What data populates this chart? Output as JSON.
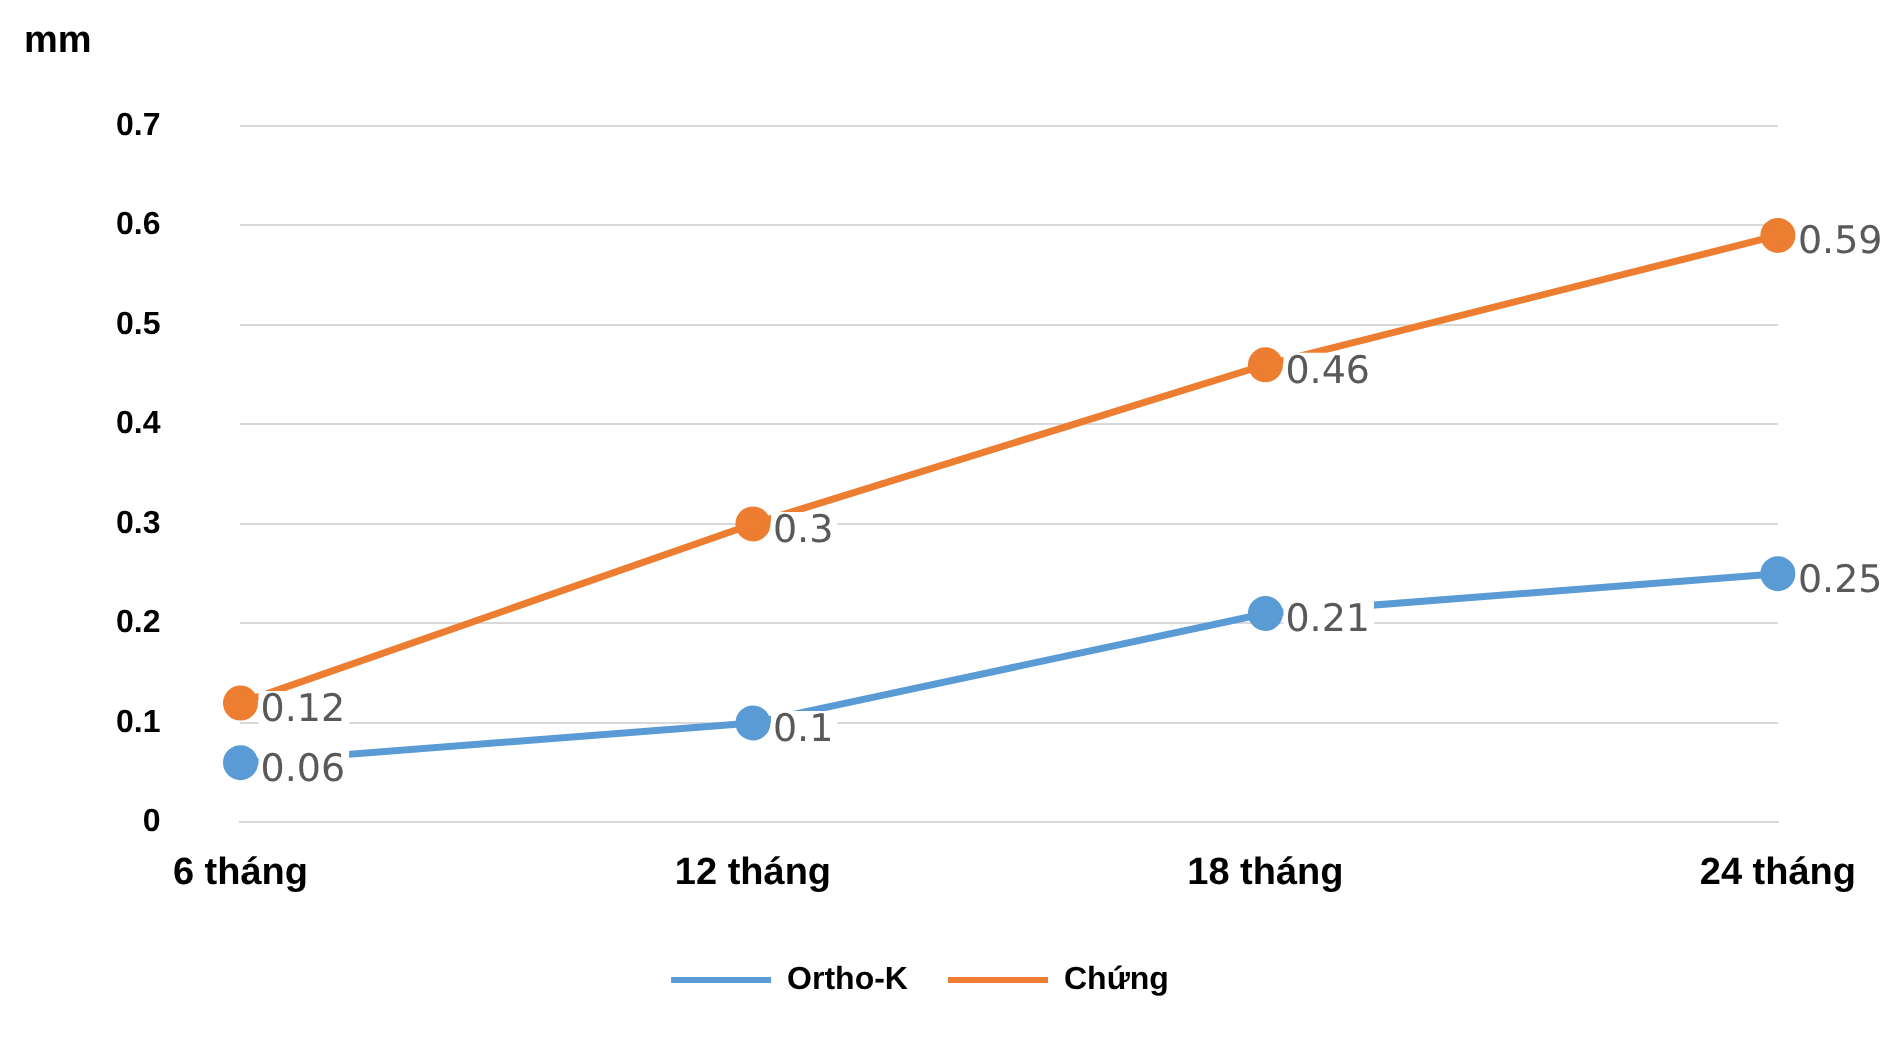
{
  "chart_data": {
    "type": "line",
    "ylabel": "mm",
    "categories": [
      "6 tháng",
      "12 tháng",
      "18 tháng",
      "24 tháng"
    ],
    "series": [
      {
        "name": "Ortho-K",
        "color": "#5b9bd5",
        "values": [
          0.06,
          0.1,
          0.21,
          0.25
        ]
      },
      {
        "name": "Chứng",
        "color": "#ed7d31",
        "values": [
          0.12,
          0.3,
          0.46,
          0.59
        ]
      }
    ],
    "ylim": [
      0,
      0.7
    ],
    "yticks": [
      0,
      0.1,
      0.2,
      0.3,
      0.4,
      0.5,
      0.6,
      0.7
    ],
    "grid": "y",
    "legend": "bottom",
    "marker": "circle",
    "data_labels": true
  }
}
